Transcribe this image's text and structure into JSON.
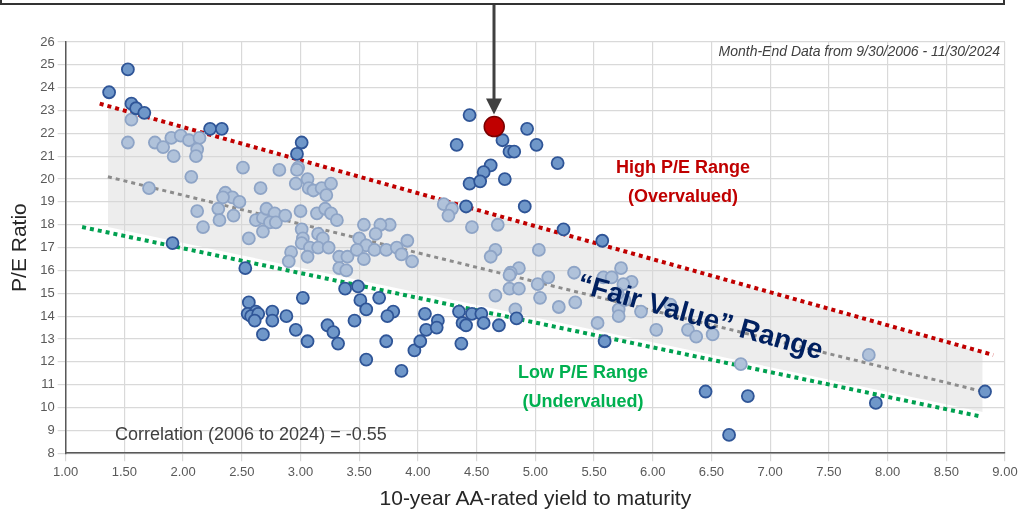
{
  "chart_data": {
    "type": "scatter",
    "xlabel": "10-year AA-rated yield to maturity",
    "ylabel": "P/E Ratio",
    "xlim": [
      1,
      9
    ],
    "xticks": [
      {
        "value": 1,
        "label": "1.00"
      },
      {
        "value": 1.5,
        "label": "1.50"
      },
      {
        "value": 2,
        "label": "2.00"
      },
      {
        "value": 2.5,
        "label": "2.50"
      },
      {
        "value": 3,
        "label": "3.00"
      },
      {
        "value": 3.5,
        "label": "3.50"
      },
      {
        "value": 4,
        "label": "4.00"
      },
      {
        "value": 4.5,
        "label": "4.50"
      },
      {
        "value": 5,
        "label": "5.00"
      },
      {
        "value": 5.5,
        "label": "5.50"
      },
      {
        "value": 6,
        "label": "6.00"
      },
      {
        "value": 6.5,
        "label": "6.50"
      },
      {
        "value": 7,
        "label": "7.00"
      },
      {
        "value": 7.5,
        "label": "7.50"
      },
      {
        "value": 8,
        "label": "8.00"
      },
      {
        "value": 8.5,
        "label": "8.50"
      },
      {
        "value": 9,
        "label": "9.00"
      }
    ],
    "ylim": [
      8,
      26
    ],
    "yticks": [
      8,
      9,
      10,
      11,
      12,
      13,
      14,
      15,
      16,
      17,
      18,
      19,
      20,
      21,
      22,
      23,
      24,
      25,
      26
    ],
    "grid": true,
    "legend": false,
    "marker": "circle",
    "series": [
      {
        "color": "#6f97c9",
        "x": [
          1.37,
          1.53,
          1.56,
          1.6,
          1.67,
          2.23,
          2.33,
          3.01,
          2.97,
          1.91,
          2.53,
          4.44,
          4.33,
          4.72,
          4.93,
          5.01,
          4.78,
          4.82,
          4.62,
          4.56,
          4.44,
          4.53,
          4.74,
          5.19,
          4.91,
          5.24,
          5.57,
          4.41,
          3.38,
          3.49,
          3.51,
          3.56,
          3.67,
          3.79,
          3.74,
          3.46,
          3.23,
          3.28,
          3.32,
          3.06,
          3.56,
          3.73,
          3.86,
          3.97,
          4.02,
          4.07,
          4.06,
          4.17,
          4.16,
          4.35,
          4.38,
          4.41,
          4.37,
          4.46,
          4.54,
          4.56,
          4.69,
          4.84,
          3.02,
          5.59,
          6.45,
          6.81,
          6.65,
          7.9,
          8.83,
          2.56,
          2.55,
          2.62,
          2.58,
          2.64,
          2.61,
          2.68,
          2.76,
          2.76,
          2.88,
          2.96
        ],
        "values": [
          23.8,
          24.8,
          23.3,
          23.1,
          22.9,
          22.2,
          22.2,
          21.6,
          21.1,
          17.2,
          16.1,
          22.8,
          21.5,
          21.7,
          22.2,
          21.5,
          21.2,
          21.2,
          20.6,
          20.3,
          19.8,
          19.9,
          20.0,
          20.7,
          18.8,
          17.8,
          17.3,
          18.8,
          15.2,
          15.3,
          14.7,
          14.3,
          14.8,
          14.2,
          14.0,
          13.8,
          13.6,
          13.3,
          12.8,
          12.9,
          12.1,
          12.9,
          11.6,
          12.5,
          12.9,
          13.4,
          14.1,
          13.8,
          13.5,
          14.2,
          13.7,
          13.6,
          12.8,
          14.1,
          14.1,
          13.7,
          13.6,
          13.9,
          14.8,
          12.9,
          10.7,
          10.5,
          8.8,
          10.2,
          10.7,
          14.6,
          14.1,
          14.2,
          14.0,
          14.1,
          13.8,
          13.2,
          14.2,
          13.8,
          14.0,
          13.4
        ]
      },
      {
        "color": "#b0c2da",
        "x": [
          1.56,
          1.53,
          1.76,
          1.83,
          1.9,
          1.98,
          2.05,
          2.14,
          2.12,
          2.11,
          1.92,
          2.07,
          2.51,
          2.82,
          2.98,
          2.97,
          2.96,
          3.06,
          3.07,
          3.11,
          3.18,
          3.22,
          3.26,
          1.71,
          2.66,
          2.36,
          2.42,
          2.48,
          2.34,
          2.12,
          2.3,
          2.43,
          2.17,
          2.31,
          2.56,
          2.62,
          2.68,
          2.71,
          2.78,
          2.74,
          2.79,
          2.87,
          2.68,
          3.0,
          3.01,
          3.14,
          3.21,
          3.26,
          3.31,
          3.02,
          3.01,
          3.15,
          3.19,
          3.08,
          3.15,
          3.24,
          2.92,
          2.9,
          3.06,
          3.33,
          3.4,
          3.54,
          3.5,
          3.56,
          3.48,
          3.54,
          3.33,
          3.39,
          4.22,
          4.29,
          4.26,
          4.46,
          4.68,
          4.66,
          4.62,
          5.03,
          3.91,
          3.76,
          3.68,
          3.64,
          3.63,
          3.73,
          3.82,
          3.86,
          3.95,
          4.86,
          4.79,
          5.73,
          5.33,
          4.83,
          4.66,
          4.78,
          4.86,
          4.78,
          5.04,
          5.02,
          5.11,
          5.2,
          5.34,
          5.53,
          5.58,
          5.65,
          5.71,
          5.76,
          5.82,
          5.71,
          5.75,
          5.7,
          5.9,
          6.15,
          6.03,
          6.3,
          6.37,
          6.51,
          6.75,
          7.84
        ],
        "values": [
          22.6,
          21.6,
          21.6,
          21.4,
          21.8,
          21.9,
          21.7,
          21.8,
          21.3,
          21.0,
          21.0,
          20.1,
          20.5,
          20.4,
          20.5,
          20.4,
          19.8,
          20.0,
          19.6,
          19.5,
          19.6,
          19.3,
          19.8,
          19.6,
          19.6,
          19.4,
          19.2,
          19.0,
          19.2,
          18.6,
          18.7,
          18.4,
          17.9,
          18.2,
          17.4,
          18.2,
          18.3,
          18.7,
          18.5,
          18.1,
          18.1,
          18.4,
          17.7,
          18.6,
          17.8,
          18.5,
          18.7,
          18.5,
          18.2,
          17.4,
          17.2,
          17.6,
          17.4,
          17.0,
          17.0,
          17.0,
          16.8,
          16.4,
          16.6,
          16.6,
          16.6,
          18.0,
          17.4,
          17.1,
          16.9,
          16.5,
          16.1,
          16.0,
          18.9,
          18.7,
          18.4,
          17.9,
          18.0,
          16.9,
          16.6,
          16.9,
          17.3,
          18.0,
          18.0,
          17.6,
          16.9,
          16.9,
          17.0,
          16.7,
          16.4,
          16.1,
          15.9,
          16.1,
          15.9,
          14.3,
          14.9,
          15.2,
          15.2,
          15.8,
          14.8,
          15.4,
          15.7,
          14.4,
          14.6,
          13.7,
          15.7,
          15.7,
          14.3,
          14.7,
          15.5,
          14.0,
          15.4,
          15.0,
          14.2,
          14.5,
          13.4,
          13.4,
          13.1,
          13.2,
          11.9,
          12.3
        ]
      },
      {
        "color": "#c00000",
        "x": [
          4.65
        ],
        "values": [
          22.3
        ]
      },
      {
        "type": "line",
        "color": "#c00000",
        "line_style": "dotted",
        "marker": "none",
        "x": [
          1.29,
          8.9
        ],
        "values": [
          23.3,
          12.3
        ]
      },
      {
        "type": "line",
        "color": "#00a050",
        "line_style": "dotted",
        "marker": "none",
        "x": [
          1.14,
          8.8
        ],
        "values": [
          17.9,
          9.6
        ]
      },
      {
        "type": "line",
        "color": "#8c8c8c",
        "line_style": "dotted",
        "marker": "none",
        "x": [
          1.36,
          8.81
        ],
        "values": [
          20.1,
          10.7
        ],
        "lower": [
          17.9,
          9.8
        ],
        "upper": [
          23.2,
          12.4
        ]
      }
    ],
    "annotations": [
      "Month-End Data from 9/30/2006 - 11/30/2024",
      "High P/E Range\n(Overvalued)",
      "Low P/E Range\n(Undervalued)",
      "“Fair Value” Range",
      "Correlation (2006 to 2024) = -0.55"
    ]
  }
}
